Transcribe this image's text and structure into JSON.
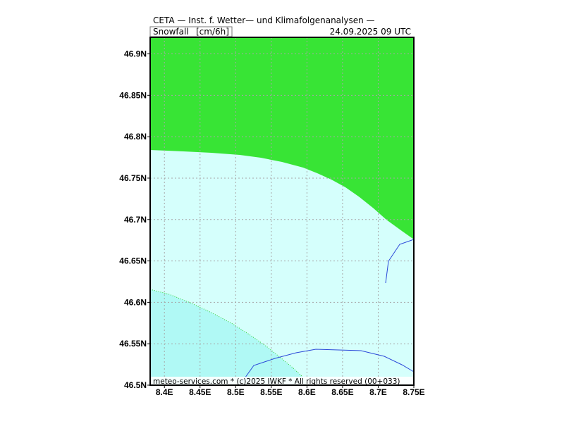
{
  "header": {
    "title": "CETA — Inst. f. Wetter— und Klimafolgenanalysen —",
    "parameter": "Snowfall",
    "unit": "[cm/6h]",
    "valid_time": "24.09.2025  09  UTC"
  },
  "map": {
    "lon_range": [
      8.38,
      8.75
    ],
    "lat_range": [
      46.5,
      46.92
    ],
    "lon_ticks": [
      "8.4E",
      "8.45E",
      "8.5E",
      "8.55E",
      "8.6E",
      "8.65E",
      "8.7E",
      "8.75E"
    ],
    "lat_ticks": [
      "46.9N",
      "46.85N",
      "46.8N",
      "46.75N",
      "46.7N",
      "46.65N",
      "46.6N",
      "46.55N",
      "46.5N"
    ],
    "grid": "dotted",
    "colors": {
      "zone_green": "#38e435",
      "zone_pale": "#d5fffc",
      "zone_cyan": "#b0f9f5",
      "river": "#2a48d8",
      "grid": "#a6a6a6"
    }
  },
  "footer": {
    "credit": "meteo-services.com  *  (c)2025 IWKF  *  All rights reserved (00+033)"
  }
}
